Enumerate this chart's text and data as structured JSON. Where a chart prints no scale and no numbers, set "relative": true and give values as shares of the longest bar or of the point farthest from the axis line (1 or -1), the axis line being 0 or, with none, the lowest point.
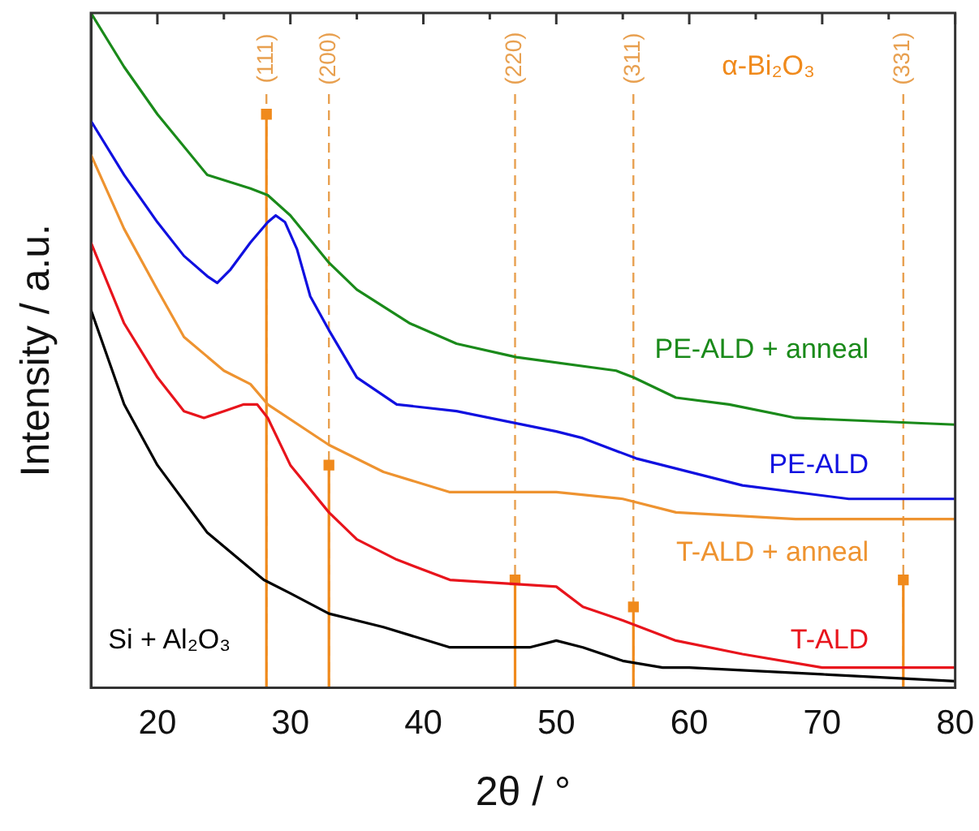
{
  "chart_data": {
    "type": "line",
    "xlabel": "2θ / °",
    "ylabel": "Intensity / a.u.",
    "relative": true,
    "xlim": [
      15,
      80
    ],
    "xticks": [
      20,
      {
        "value": 25,
        "label": null
      },
      30,
      {
        "value": 35,
        "label": null
      },
      40,
      {
        "value": 45,
        "label": null
      },
      50,
      {
        "value": 55,
        "label": null
      },
      60,
      {
        "value": 65,
        "label": null
      },
      70,
      {
        "value": 75,
        "label": null
      },
      80
    ],
    "grid": false,
    "legend": false,
    "marker": "none",
    "line_style": "solid",
    "series": [
      {
        "name": "Si + Al₂O₃",
        "color": "#000000",
        "x": [
          15,
          17.5,
          20,
          23.75,
          28,
          30,
          32.9,
          37,
          42,
          48,
          50,
          52,
          55,
          58,
          60,
          70,
          80
        ],
        "values": [
          0.56,
          0.42,
          0.33,
          0.23,
          0.16,
          0.14,
          0.11,
          0.09,
          0.06,
          0.06,
          0.07,
          0.06,
          0.04,
          0.03,
          0.03,
          0.02,
          0.01
        ]
      },
      {
        "name": "T-ALD",
        "color": "#e8141c",
        "x": [
          15,
          17.5,
          20,
          22,
          23.5,
          25,
          26.5,
          27.5,
          28.3,
          30,
          32.9,
          35,
          38,
          42,
          50,
          52,
          55,
          59,
          64,
          70,
          80
        ],
        "values": [
          0.66,
          0.54,
          0.46,
          0.41,
          0.4,
          0.41,
          0.42,
          0.42,
          0.4,
          0.33,
          0.26,
          0.22,
          0.19,
          0.16,
          0.15,
          0.12,
          0.1,
          0.07,
          0.05,
          0.03,
          0.03
        ]
      },
      {
        "name": "T-ALD + anneal",
        "color": "#ee9330",
        "x": [
          15,
          17.5,
          20,
          22,
          25,
          27,
          28.3,
          32.9,
          37,
          42,
          50,
          55,
          59,
          68,
          80
        ],
        "values": [
          0.79,
          0.68,
          0.59,
          0.52,
          0.47,
          0.45,
          0.42,
          0.36,
          0.32,
          0.29,
          0.29,
          0.28,
          0.26,
          0.25,
          0.25
        ]
      },
      {
        "name": "PE-ALD",
        "color": "#1010e0",
        "x": [
          15,
          17.5,
          20,
          22,
          23.75,
          24.5,
          25.5,
          27,
          28.3,
          28.9,
          29.6,
          30.5,
          31.5,
          32.9,
          35,
          38,
          42.5,
          50,
          52,
          56,
          64,
          72,
          80
        ],
        "values": [
          0.84,
          0.76,
          0.69,
          0.64,
          0.61,
          0.6,
          0.62,
          0.66,
          0.69,
          0.7,
          0.69,
          0.65,
          0.58,
          0.53,
          0.46,
          0.42,
          0.41,
          0.38,
          0.37,
          0.34,
          0.3,
          0.28,
          0.28
        ]
      },
      {
        "name": "PE-ALD + anneal",
        "color": "#1a8a1a",
        "x": [
          15,
          17.5,
          20,
          23.75,
          27,
          28.3,
          30,
          32.9,
          35,
          39,
          42.5,
          47,
          54.5,
          55.8,
          59,
          63,
          68,
          80
        ],
        "values": [
          1.0,
          0.92,
          0.85,
          0.76,
          0.74,
          0.73,
          0.7,
          0.63,
          0.59,
          0.54,
          0.51,
          0.49,
          0.47,
          0.46,
          0.43,
          0.42,
          0.4,
          0.39
        ]
      },
      {
        "name": "α-Bi₂O₃",
        "type": "lollipop",
        "color": "#f08a1c",
        "marker": "square",
        "x": [
          28.2,
          32.9,
          46.9,
          55.8,
          76.1
        ],
        "values": [
          0.85,
          0.33,
          0.16,
          0.12,
          0.16
        ]
      }
    ],
    "ref_lines": [
      {
        "axis": "x",
        "value": 28.2,
        "color": "#e8a050",
        "line_style": "dashed"
      },
      {
        "axis": "x",
        "value": 32.9,
        "color": "#e8a050",
        "line_style": "dashed"
      },
      {
        "axis": "x",
        "value": 46.9,
        "color": "#e8a050",
        "line_style": "dashed"
      },
      {
        "axis": "x",
        "value": 55.8,
        "color": "#e8a050",
        "line_style": "dashed"
      },
      {
        "axis": "x",
        "value": 76.1,
        "color": "#e8a050",
        "line_style": "dashed"
      }
    ],
    "annotations": [
      "(111)",
      "(200)",
      "(220)",
      "(311)",
      "(331)"
    ]
  }
}
